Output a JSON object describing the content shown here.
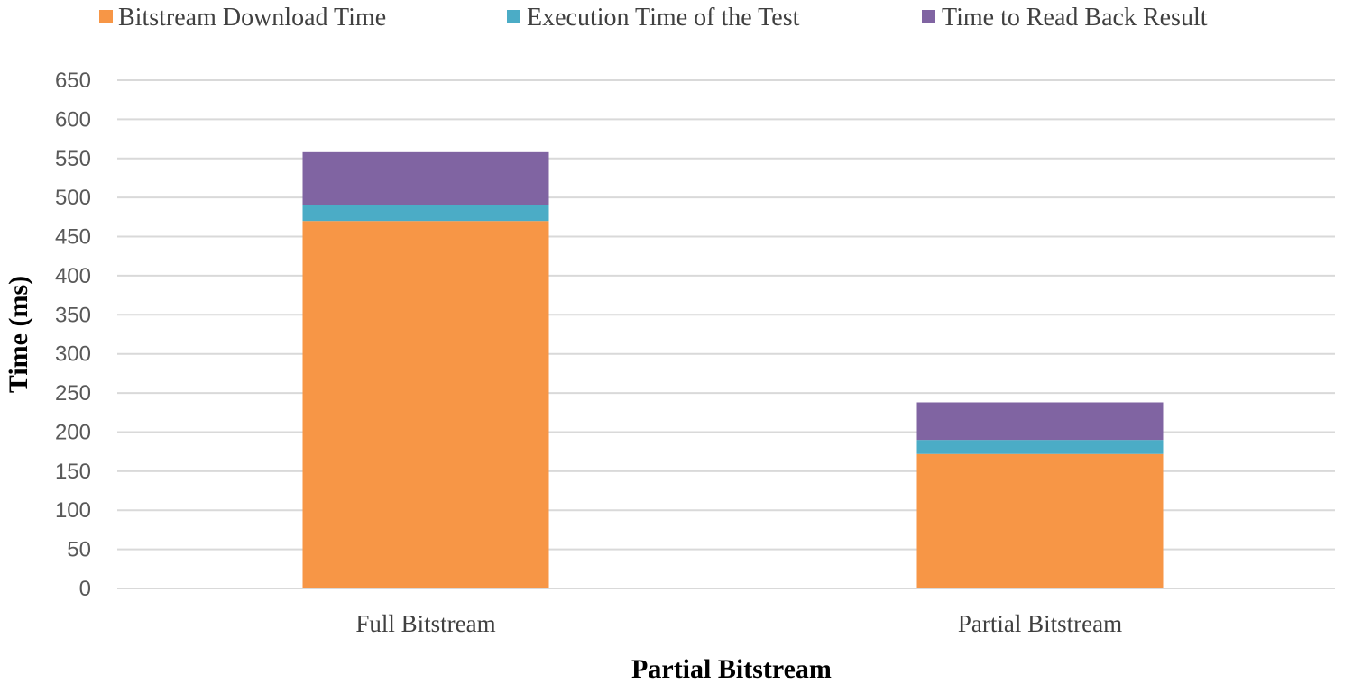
{
  "chart_data": {
    "type": "bar",
    "stacked": true,
    "title": "",
    "xlabel": "Partial Bitstream",
    "ylabel": "Time (ms)",
    "ylim": [
      0,
      650
    ],
    "yticks": [
      "0",
      "50",
      "100",
      "150",
      "200",
      "250",
      "300",
      "350",
      "400",
      "450",
      "500",
      "550",
      "600",
      "650"
    ],
    "grid": true,
    "legend_position": "top",
    "categories": [
      "Full Bitstream",
      "Partial Bitstream"
    ],
    "series": [
      {
        "name": "Bitstream Download Time",
        "color": "#f79646",
        "values": [
          470,
          172
        ]
      },
      {
        "name": "Execution Time of the Test",
        "color": "#4bacc6",
        "values": [
          20,
          18
        ]
      },
      {
        "name": "Time to Read Back Result",
        "color": "#8064a2",
        "values": [
          68,
          48
        ]
      }
    ]
  }
}
